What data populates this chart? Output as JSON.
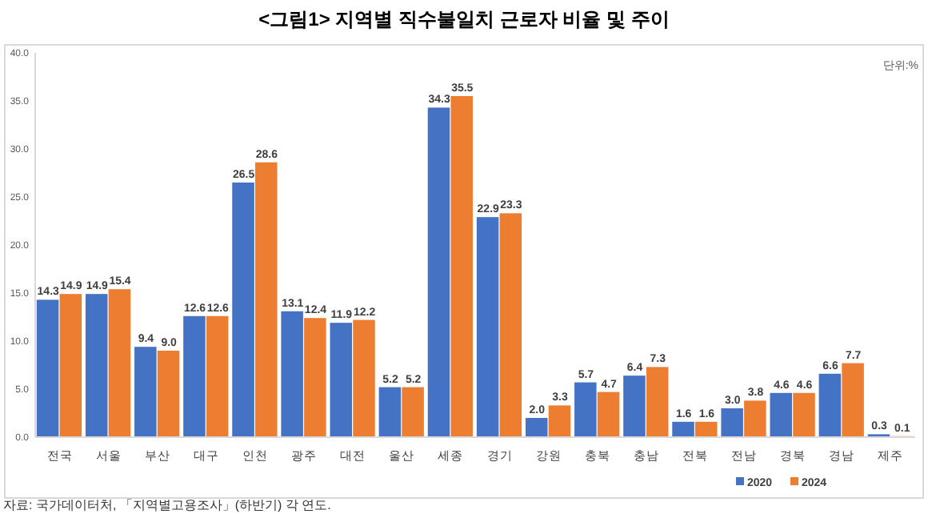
{
  "chart_data": {
    "type": "bar",
    "title": "<그림1> 지역별 직수불일치 근로자 비율 및 주이",
    "categories": [
      "전국",
      "서울",
      "부산",
      "대구",
      "인천",
      "광주",
      "대전",
      "울산",
      "세종",
      "경기",
      "강원",
      "충북",
      "충남",
      "전북",
      "전남",
      "경북",
      "경남",
      "제주"
    ],
    "series": [
      {
        "name": "2020",
        "color": "#4472c4",
        "values": [
          14.3,
          14.9,
          9.4,
          12.6,
          26.5,
          13.1,
          11.9,
          5.2,
          34.3,
          22.9,
          2.0,
          5.7,
          6.4,
          1.6,
          3.0,
          4.6,
          6.6,
          0.3
        ],
        "value_labels": [
          "14.3",
          "14.9",
          "9.4",
          "12.6",
          "26.5",
          "13.1",
          "11.9",
          "5.2",
          "34.3",
          "22.9",
          "2.0",
          "5.7",
          "6.4",
          "1.6",
          "3.0",
          "4.6",
          "6.6",
          "0.3"
        ]
      },
      {
        "name": "2024",
        "color": "#ed7d31",
        "values": [
          14.9,
          15.4,
          9.0,
          12.6,
          28.6,
          12.4,
          12.2,
          5.2,
          35.5,
          23.3,
          3.3,
          4.7,
          7.3,
          1.6,
          3.8,
          4.6,
          7.7,
          0.1
        ],
        "value_labels": [
          "14.9",
          "15.4",
          "9.0",
          "12.6",
          "28.6",
          "12.4",
          "12.2",
          "5.2",
          "35.5",
          "23.3",
          "3.3",
          "4.7",
          "7.3",
          "1.6",
          "3.8",
          "4.6",
          "7.7",
          "0.1"
        ]
      }
    ],
    "ylim": [
      0,
      40
    ],
    "yticks": [
      {
        "value": 0,
        "label": "0.0"
      },
      {
        "value": 5,
        "label": "5.0"
      },
      {
        "value": 10,
        "label": "10.0"
      },
      {
        "value": 15,
        "label": "15.0"
      },
      {
        "value": 20,
        "label": "20.0"
      },
      {
        "value": 25,
        "label": "25.0"
      },
      {
        "value": 30,
        "label": "30.0"
      },
      {
        "value": 35,
        "label": "35.0"
      },
      {
        "value": 40,
        "label": "40.0"
      }
    ],
    "legend": "bottom right",
    "annotations": [
      "단위:%",
      "자료: 국가데이터처, 「지역별고용조사」(하반기) 각 연도."
    ]
  }
}
